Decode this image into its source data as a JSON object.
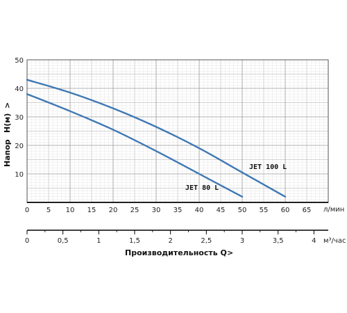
{
  "chart_data": {
    "type": "line",
    "ylabel_parts": [
      "Напор",
      "H(м)",
      ">"
    ],
    "xlabel": "Производительность Q",
    "xlabel_arrow": ">",
    "x_unit_top": "л/мин",
    "x_unit_bottom": "м³/час",
    "xlim": [
      0,
      70
    ],
    "ylim": [
      0,
      50
    ],
    "x_ticks": [
      "0",
      "5",
      "10",
      "15",
      "20",
      "25",
      "30",
      "35",
      "40",
      "45",
      "50",
      "55",
      "60",
      "65"
    ],
    "y_ticks": [
      "10",
      "20",
      "30",
      "40",
      "50"
    ],
    "x2_range": [
      0,
      4.2
    ],
    "x2_ticks": [
      "0",
      "0,5",
      "1",
      "1,5",
      "2",
      "2,5",
      "3",
      "3,5",
      "4"
    ],
    "grid": true,
    "series_color": "#3f78b4",
    "series": [
      {
        "name": "JET 80 L",
        "x": [
          0,
          10,
          20,
          30,
          40,
          50
        ],
        "y": [
          38,
          32,
          25.5,
          18,
          10,
          2
        ]
      },
      {
        "name": "JET 100 L",
        "x": [
          0,
          10,
          20,
          30,
          40,
          50,
          60
        ],
        "y": [
          43,
          38.5,
          33,
          26.5,
          19,
          10.5,
          2
        ]
      }
    ]
  }
}
